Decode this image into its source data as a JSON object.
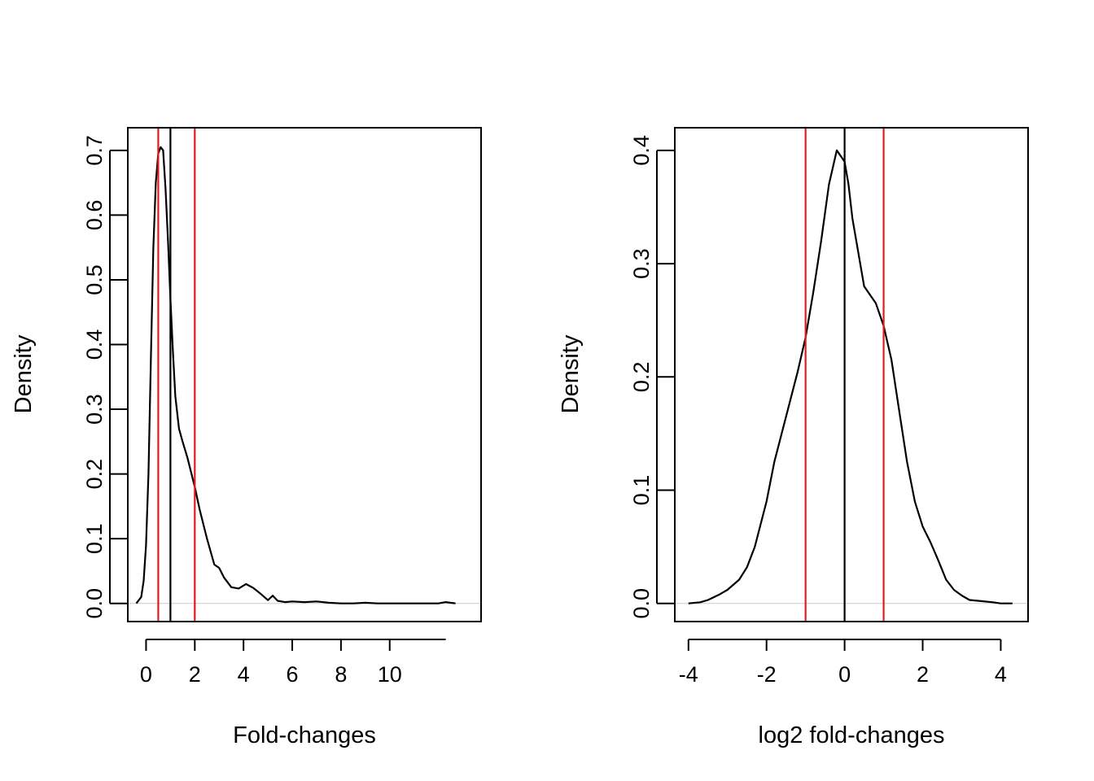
{
  "chart_data": [
    {
      "type": "line",
      "title": "",
      "xlabel": "Fold-changes",
      "ylabel": "Density",
      "xlim": [
        -0.75,
        13.75
      ],
      "ylim": [
        -0.028,
        0.735
      ],
      "xticks": [
        0,
        2,
        4,
        6,
        8,
        10
      ],
      "xtick_labels": [
        "0",
        "2",
        "4",
        "6",
        "8",
        "10"
      ],
      "yticks": [
        0.0,
        0.1,
        0.2,
        0.3,
        0.4,
        0.5,
        0.6,
        0.7
      ],
      "ytick_labels": [
        "0.0",
        "0.1",
        "0.2",
        "0.3",
        "0.4",
        "0.5",
        "0.6",
        "0.7"
      ],
      "axis_extent_x": [
        0,
        12.3
      ],
      "grid": false,
      "baseline": {
        "y": 0,
        "color": "#cccccc"
      },
      "series": [
        {
          "color": "#000000",
          "x": [
            -0.4,
            -0.2,
            -0.1,
            0.0,
            0.1,
            0.2,
            0.3,
            0.4,
            0.5,
            0.6,
            0.7,
            0.8,
            0.9,
            1.0,
            1.1,
            1.2,
            1.35,
            1.5,
            1.7,
            1.9,
            2.0,
            2.2,
            2.5,
            2.8,
            3.0,
            3.2,
            3.5,
            3.8,
            4.1,
            4.4,
            4.7,
            5.0,
            5.2,
            5.4,
            5.7,
            6.0,
            6.5,
            7.0,
            7.5,
            8.0,
            8.5,
            9.0,
            9.5,
            10.0,
            10.5,
            11.0,
            11.5,
            12.0,
            12.3,
            12.7
          ],
          "y": [
            0.0,
            0.01,
            0.035,
            0.09,
            0.2,
            0.38,
            0.55,
            0.65,
            0.695,
            0.705,
            0.7,
            0.64,
            0.56,
            0.47,
            0.39,
            0.32,
            0.27,
            0.25,
            0.225,
            0.195,
            0.18,
            0.145,
            0.1,
            0.06,
            0.055,
            0.04,
            0.025,
            0.023,
            0.03,
            0.024,
            0.015,
            0.005,
            0.012,
            0.004,
            0.002,
            0.003,
            0.002,
            0.003,
            0.001,
            0.0,
            0.0,
            0.001,
            0.0,
            0.0,
            0.0,
            0.0,
            0.0,
            0.0,
            0.002,
            0.0
          ]
        }
      ],
      "vlines": [
        {
          "x": 0.5,
          "color": "#e31a1c"
        },
        {
          "x": 1,
          "color": "#000000"
        },
        {
          "x": 2,
          "color": "#e31a1c"
        }
      ]
    },
    {
      "type": "line",
      "title": "",
      "xlabel": "log2 fold-changes",
      "ylabel": "Density",
      "xlim": [
        -4.35,
        4.7
      ],
      "ylim": [
        -0.016,
        0.42
      ],
      "xticks": [
        -4,
        -2,
        0,
        2,
        4
      ],
      "xtick_labels": [
        "-4",
        "-2",
        "0",
        "2",
        "4"
      ],
      "yticks": [
        0.0,
        0.1,
        0.2,
        0.3,
        0.4
      ],
      "ytick_labels": [
        "0.0",
        "0.1",
        "0.2",
        "0.3",
        "0.4"
      ],
      "axis_extent_x": [
        -4,
        4
      ],
      "grid": false,
      "baseline": {
        "y": 0,
        "color": "#cccccc"
      },
      "series": [
        {
          "color": "#000000",
          "x": [
            -4.0,
            -3.7,
            -3.5,
            -3.2,
            -3.0,
            -2.7,
            -2.5,
            -2.3,
            -2.0,
            -1.8,
            -1.5,
            -1.2,
            -1.0,
            -0.8,
            -0.6,
            -0.4,
            -0.2,
            0.0,
            0.1,
            0.2,
            0.4,
            0.5,
            0.6,
            0.8,
            1.0,
            1.2,
            1.4,
            1.6,
            1.8,
            2.0,
            2.2,
            2.4,
            2.6,
            2.8,
            3.0,
            3.2,
            3.5,
            3.8,
            4.0,
            4.3
          ],
          "y": [
            0.0,
            0.001,
            0.003,
            0.008,
            0.012,
            0.021,
            0.032,
            0.05,
            0.09,
            0.125,
            0.165,
            0.205,
            0.235,
            0.275,
            0.32,
            0.37,
            0.4,
            0.39,
            0.37,
            0.34,
            0.3,
            0.28,
            0.275,
            0.265,
            0.245,
            0.215,
            0.17,
            0.125,
            0.09,
            0.068,
            0.054,
            0.038,
            0.021,
            0.012,
            0.007,
            0.003,
            0.002,
            0.001,
            0.0,
            0.0
          ]
        }
      ],
      "vlines": [
        {
          "x": -1,
          "color": "#e31a1c"
        },
        {
          "x": 0,
          "color": "#000000"
        },
        {
          "x": 1,
          "color": "#e31a1c"
        }
      ]
    }
  ]
}
